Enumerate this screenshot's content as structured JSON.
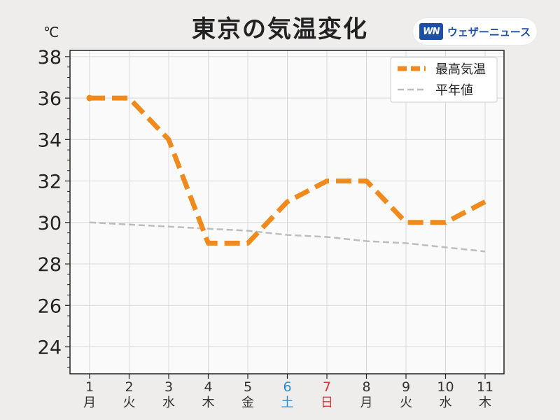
{
  "header": {
    "title": "東京の気温変化",
    "unit": "℃",
    "brand_logo": "WN",
    "brand_text": "ウェザーニュース"
  },
  "chart_data": {
    "type": "line",
    "title": "東京の気温変化",
    "ylabel": "℃",
    "xlabel": "",
    "ylim": [
      22.7,
      38.3
    ],
    "yticks": [
      24,
      26,
      28,
      30,
      32,
      34,
      36,
      38
    ],
    "grid": true,
    "legend_position": "top-right",
    "categories": [
      "1",
      "2",
      "3",
      "4",
      "5",
      "6",
      "7",
      "8",
      "9",
      "10",
      "11"
    ],
    "weekdays": [
      "月",
      "火",
      "水",
      "木",
      "金",
      "土",
      "日",
      "月",
      "火",
      "水",
      "木"
    ],
    "weekday_colors": [
      "#333333",
      "#333333",
      "#333333",
      "#333333",
      "#333333",
      "#2c8fd6",
      "#d93636",
      "#333333",
      "#333333",
      "#333333",
      "#333333"
    ],
    "series": [
      {
        "name": "最高気温",
        "color": "#f08a1c",
        "style": "dashed-thick",
        "values": [
          36,
          36,
          34,
          29,
          29,
          31,
          32,
          32,
          30,
          30,
          31
        ]
      },
      {
        "name": "平年値",
        "color": "#bdbdbd",
        "style": "dashed-thin",
        "values": [
          30.0,
          29.9,
          29.8,
          29.7,
          29.6,
          29.4,
          29.3,
          29.1,
          29.0,
          28.8,
          28.6
        ]
      }
    ]
  }
}
